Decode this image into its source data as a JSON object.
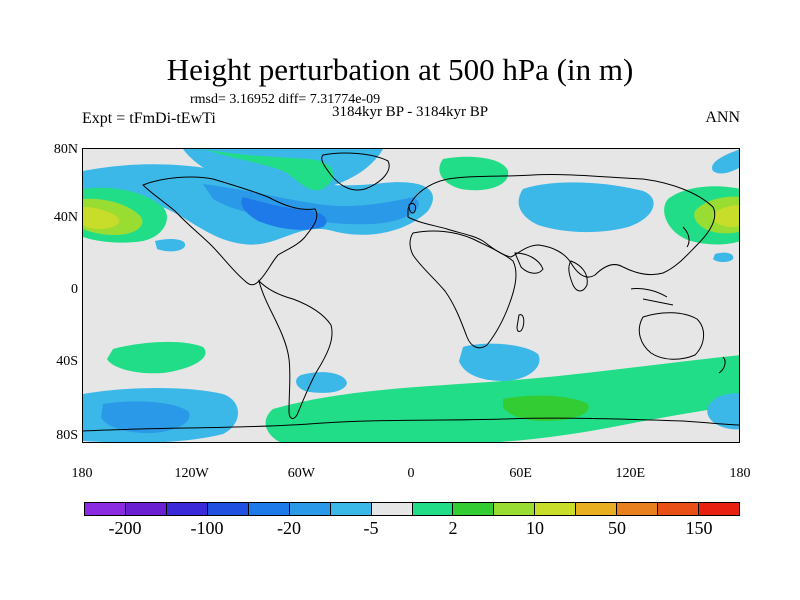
{
  "title": "Height perturbation at 500 hPa (in m)",
  "stats": "rmsd= 3.16952 diff= 7.31774e-09",
  "subtitle": "3184kyr BP - 3184kyr BP",
  "expt": "Expt = tFmDi-tEwTi",
  "season": "ANN",
  "y_ticks": [
    "80N",
    "40N",
    "0",
    "40S",
    "80S"
  ],
  "x_ticks": [
    "180",
    "120W",
    "60W",
    "0",
    "60E",
    "120E",
    "180"
  ],
  "colorbar": {
    "colors": [
      "#8a2be2",
      "#6a1fd0",
      "#3a2ad8",
      "#2050e0",
      "#1e7ae8",
      "#2a9ae8",
      "#3cb8e8",
      "#e6e6e6",
      "#22dd88",
      "#33cc33",
      "#99dd33",
      "#c8dc2a",
      "#e8b020",
      "#e88020",
      "#e85018",
      "#e82010"
    ],
    "labels": [
      "-200",
      "-100",
      "-20",
      "-5",
      "2",
      "10",
      "50",
      "150"
    ]
  }
}
